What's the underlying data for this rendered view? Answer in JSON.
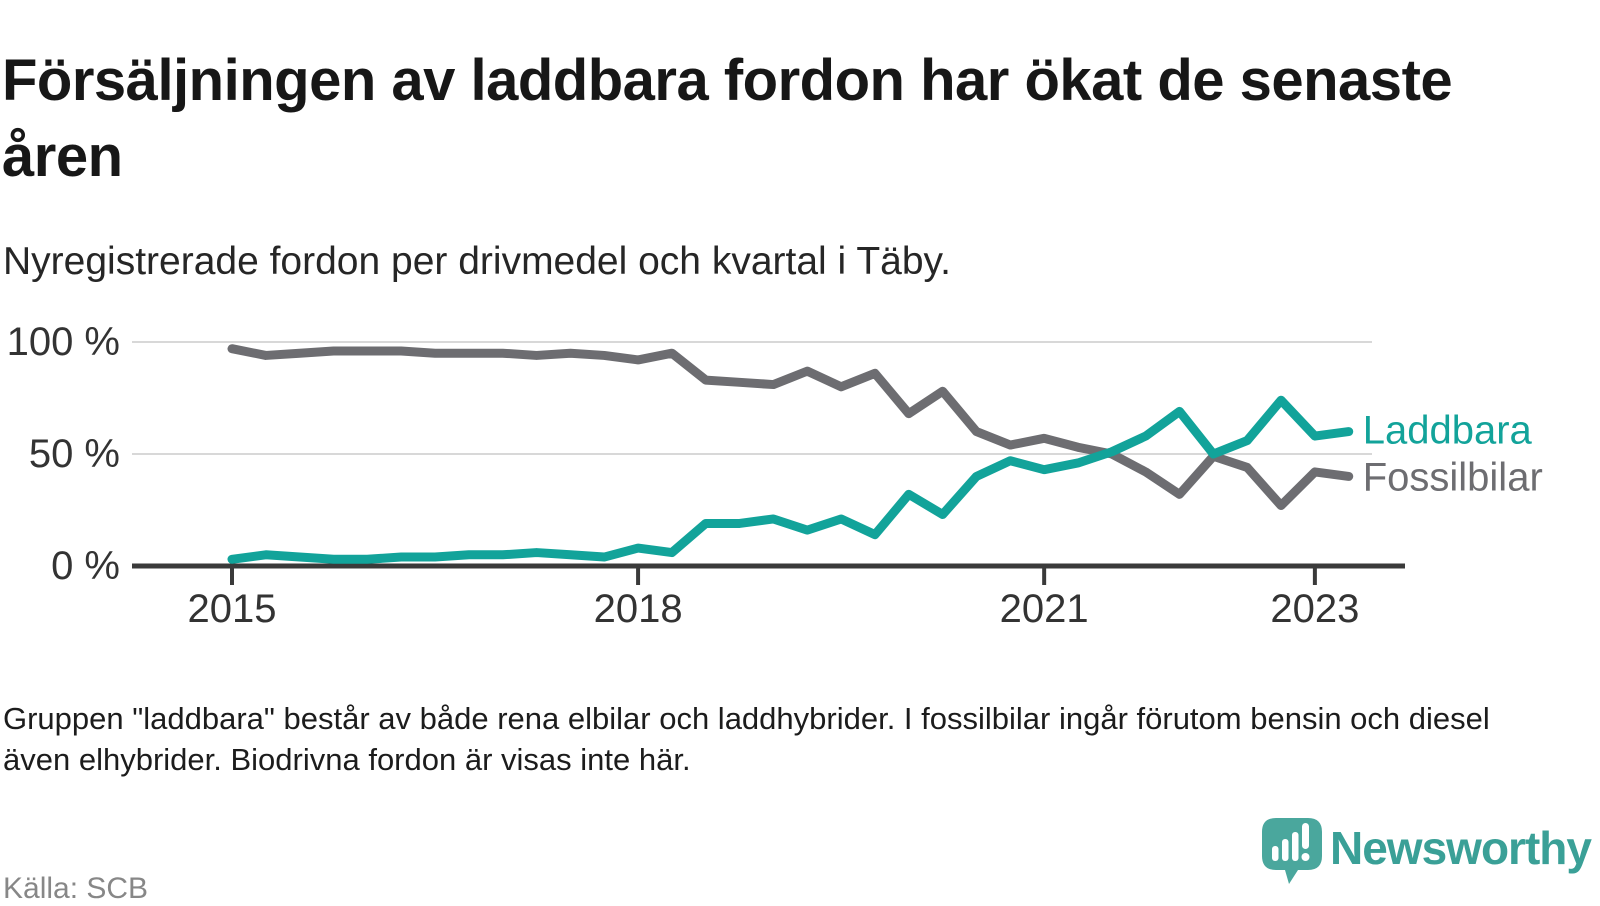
{
  "header": {
    "title": "Försäljningen av laddbara fordon har ökat de senaste åren",
    "subtitle": "Nyregistrerade fordon per drivmedel och kvartal i Täby."
  },
  "chart_data": {
    "type": "line",
    "title": "Nyregistrerade fordon per drivmedel och kvartal i Täby",
    "x_unit": "quarter",
    "x": [
      "2015 Q1",
      "2015 Q2",
      "2015 Q3",
      "2015 Q4",
      "2016 Q1",
      "2016 Q2",
      "2016 Q3",
      "2016 Q4",
      "2017 Q1",
      "2017 Q2",
      "2017 Q3",
      "2017 Q4",
      "2018 Q1",
      "2018 Q2",
      "2018 Q3",
      "2018 Q4",
      "2019 Q1",
      "2019 Q2",
      "2019 Q3",
      "2019 Q4",
      "2020 Q1",
      "2020 Q2",
      "2020 Q3",
      "2020 Q4",
      "2021 Q1",
      "2021 Q2",
      "2021 Q3",
      "2021 Q4",
      "2022 Q1",
      "2022 Q2",
      "2022 Q3",
      "2022 Q4",
      "2023 Q1",
      "2023 Q2"
    ],
    "series": [
      {
        "name": "Laddbara",
        "color": "#12a39a",
        "unit": "%",
        "values": [
          3,
          5,
          4,
          3,
          3,
          4,
          4,
          5,
          5,
          6,
          5,
          4,
          8,
          6,
          19,
          19,
          21,
          16,
          21,
          14,
          32,
          23,
          40,
          47,
          43,
          46,
          51,
          58,
          69,
          50,
          56,
          74,
          58,
          60
        ]
      },
      {
        "name": "Fossilbilar",
        "color": "#6d6d71",
        "unit": "%",
        "values": [
          97,
          94,
          95,
          96,
          96,
          96,
          95,
          95,
          95,
          94,
          95,
          94,
          92,
          95,
          83,
          82,
          81,
          87,
          80,
          86,
          68,
          78,
          60,
          54,
          57,
          53,
          50,
          42,
          32,
          49,
          44,
          27,
          42,
          40
        ]
      }
    ],
    "ylim": [
      0,
      100
    ],
    "ylabel": "",
    "xlabel": "",
    "grid": "horizontal",
    "legend_position": "right-end-of-lines",
    "yticks": [
      {
        "label": "100 %",
        "value": 100
      },
      {
        "label": "50 %",
        "value": 50
      },
      {
        "label": "0 %",
        "value": 0
      }
    ],
    "xticks": [
      {
        "label": "2015",
        "index": 0
      },
      {
        "label": "2018",
        "index": 12
      },
      {
        "label": "2021",
        "index": 24
      },
      {
        "label": "2023",
        "index": 32
      }
    ]
  },
  "footnote": "Gruppen \"laddbara\" består av både rena elbilar och laddhybrider. I fossilbilar ingår förutom bensin och diesel även elhybrider. Biodrivna fordon är visas inte här.",
  "source": {
    "label": "Källa: SCB"
  },
  "branding": {
    "wordmark": "Newsworthy",
    "logo_color": "#4aa79d",
    "wordmark_color": "#3aa097",
    "icon": "speech-bubble-bar-chart"
  }
}
